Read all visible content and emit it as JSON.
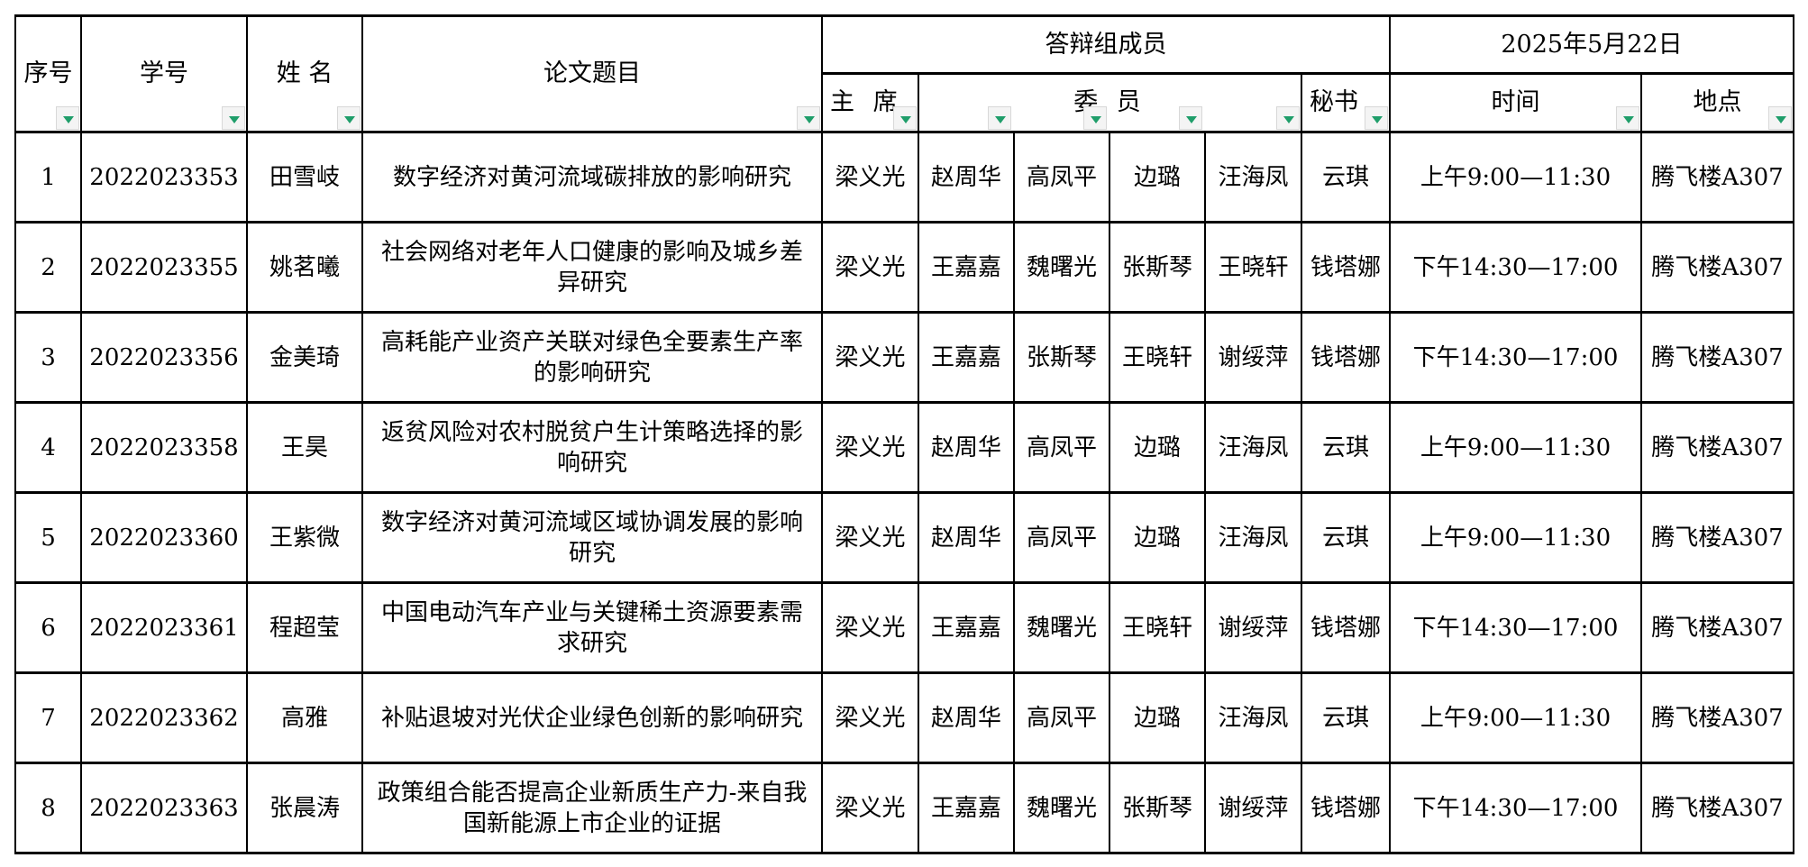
{
  "header": {
    "seq": "序号",
    "student_id": "学号",
    "name": "姓 名",
    "title": "论文题目",
    "committee": "答辩组成员",
    "date": "2025年5月22日",
    "chair": "主 席",
    "members": "委 员",
    "secretary": "秘书",
    "time": "时间",
    "location": "地点"
  },
  "filter_icon_color": "#1f9e6a",
  "rows": [
    {
      "seq": "1",
      "id": "2022023353",
      "name": "田雪岐",
      "title": "数字经济对黄河流域碳排放的影响研究",
      "chair": "梁义光",
      "m1": "赵周华",
      "m2": "高凤平",
      "m3": "边璐",
      "m4": "汪海凤",
      "sec": "云琪",
      "time": "上午9:00—11:30",
      "loc": "腾飞楼A307"
    },
    {
      "seq": "2",
      "id": "2022023355",
      "name": "姚茗曦",
      "title": "社会网络对老年人口健康的影响及城乡差异研究",
      "chair": "梁义光",
      "m1": "王嘉嘉",
      "m2": "魏曙光",
      "m3": "张斯琴",
      "m4": "王晓轩",
      "sec": "钱塔娜",
      "time": "下午14:30—17:00",
      "loc": "腾飞楼A307"
    },
    {
      "seq": "3",
      "id": "2022023356",
      "name": "金美琦",
      "title": "高耗能产业资产关联对绿色全要素生产率的影响研究",
      "chair": "梁义光",
      "m1": "王嘉嘉",
      "m2": "张斯琴",
      "m3": "王晓轩",
      "m4": "谢绥萍",
      "sec": "钱塔娜",
      "time": "下午14:30—17:00",
      "loc": "腾飞楼A307"
    },
    {
      "seq": "4",
      "id": "2022023358",
      "name": "王昊",
      "title": "返贫风险对农村脱贫户生计策略选择的影响研究",
      "chair": "梁义光",
      "m1": "赵周华",
      "m2": "高凤平",
      "m3": "边璐",
      "m4": "汪海凤",
      "sec": "云琪",
      "time": "上午9:00—11:30",
      "loc": "腾飞楼A307"
    },
    {
      "seq": "5",
      "id": "2022023360",
      "name": "王紫微",
      "title": "数字经济对黄河流域区域协调发展的影响研究",
      "chair": "梁义光",
      "m1": "赵周华",
      "m2": "高凤平",
      "m3": "边璐",
      "m4": "汪海凤",
      "sec": "云琪",
      "time": "上午9:00—11:30",
      "loc": "腾飞楼A307"
    },
    {
      "seq": "6",
      "id": "2022023361",
      "name": "程超莹",
      "title": "中国电动汽车产业与关键稀土资源要素需求研究",
      "chair": "梁义光",
      "m1": "王嘉嘉",
      "m2": "魏曙光",
      "m3": "王晓轩",
      "m4": "谢绥萍",
      "sec": "钱塔娜",
      "time": "下午14:30—17:00",
      "loc": "腾飞楼A307"
    },
    {
      "seq": "7",
      "id": "2022023362",
      "name": "高雅",
      "title": "补贴退坡对光伏企业绿色创新的影响研究",
      "chair": "梁义光",
      "m1": "赵周华",
      "m2": "高凤平",
      "m3": "边璐",
      "m4": "汪海凤",
      "sec": "云琪",
      "time": "上午9:00—11:30",
      "loc": "腾飞楼A307"
    },
    {
      "seq": "8",
      "id": "2022023363",
      "name": "张晨涛",
      "title": "政策组合能否提高企业新质生产力-来自我国新能源上市企业的证据",
      "chair": "梁义光",
      "m1": "王嘉嘉",
      "m2": "魏曙光",
      "m3": "张斯琴",
      "m4": "谢绥萍",
      "sec": "钱塔娜",
      "time": "下午14:30—17:00",
      "loc": "腾飞楼A307"
    }
  ]
}
